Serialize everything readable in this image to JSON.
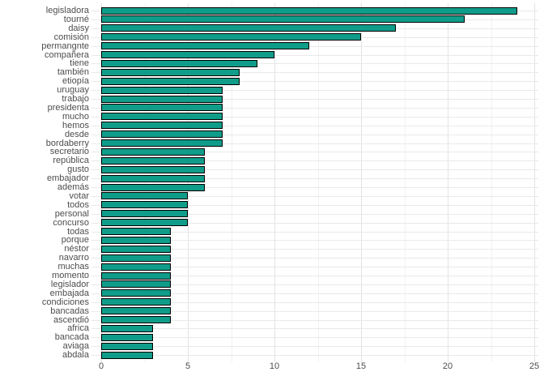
{
  "chart_data": {
    "type": "bar",
    "orientation": "horizontal",
    "title": "",
    "xlabel": "",
    "ylabel": "",
    "xlim": [
      0,
      25
    ],
    "grid": "on",
    "legend": "none",
    "x_major_ticks": [
      0,
      5,
      10,
      15,
      20,
      25
    ],
    "x_major_tick_labels": [
      "0",
      "5",
      "10",
      "15",
      "20",
      "25"
    ],
    "x_minor_ticks": [
      2.5,
      7.5,
      12.5,
      17.5,
      22.5
    ],
    "categories": [
      "legisladora",
      "tourné",
      "daisy",
      "comisión",
      "permangnte",
      "compañera",
      "tiene",
      "también",
      "etiopía",
      "uruguay",
      "trabajo",
      "presidenta",
      "mucho",
      "hemos",
      "desde",
      "bordaberry",
      "secretario",
      "república",
      "gusto",
      "embajador",
      "además",
      "votar",
      "todos",
      "personal",
      "concurso",
      "todas",
      "porque",
      "néstor",
      "navarro",
      "muchas",
      "momento",
      "legislador",
      "embajada",
      "condiciones",
      "bancadas",
      "ascendió",
      "africa",
      "bancada",
      "aviaga",
      "abdala"
    ],
    "values": [
      24,
      21,
      17,
      15,
      12,
      10,
      9,
      8,
      8,
      7,
      7,
      7,
      7,
      7,
      7,
      7,
      6,
      6,
      6,
      6,
      6,
      5,
      5,
      5,
      5,
      4,
      4,
      4,
      4,
      4,
      4,
      4,
      4,
      4,
      4,
      4,
      3,
      3,
      3,
      3
    ],
    "colors": {
      "bar_fill": "#0f9d8a",
      "bar_stroke": "#000000",
      "grid_major": "#e3e3e3",
      "grid_minor": "#f0f0f0",
      "row_grid": "#e9e9e9",
      "axis_text": "#4d4d4d",
      "background": "#ffffff"
    }
  }
}
